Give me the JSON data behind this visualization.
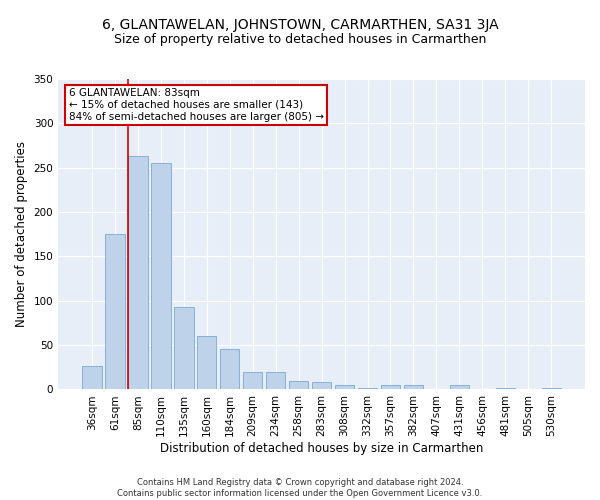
{
  "title": "6, GLANTAWELAN, JOHNSTOWN, CARMARTHEN, SA31 3JA",
  "subtitle": "Size of property relative to detached houses in Carmarthen",
  "xlabel": "Distribution of detached houses by size in Carmarthen",
  "ylabel": "Number of detached properties",
  "categories": [
    "36sqm",
    "61sqm",
    "85sqm",
    "110sqm",
    "135sqm",
    "160sqm",
    "184sqm",
    "209sqm",
    "234sqm",
    "258sqm",
    "283sqm",
    "308sqm",
    "332sqm",
    "357sqm",
    "382sqm",
    "407sqm",
    "431sqm",
    "456sqm",
    "481sqm",
    "505sqm",
    "530sqm"
  ],
  "values": [
    27,
    175,
    263,
    255,
    93,
    60,
    46,
    20,
    20,
    10,
    8,
    5,
    2,
    5,
    5,
    0,
    5,
    0,
    2,
    0,
    2
  ],
  "bar_color": "#bed3ea",
  "bar_edge_color": "#7aaad0",
  "red_line_index": 2,
  "ylim": [
    0,
    350
  ],
  "yticks": [
    0,
    50,
    100,
    150,
    200,
    250,
    300,
    350
  ],
  "annotation_text": "6 GLANTAWELAN: 83sqm\n← 15% of detached houses are smaller (143)\n84% of semi-detached houses are larger (805) →",
  "annotation_box_color": "#ffffff",
  "annotation_box_edge_color": "#cc0000",
  "background_color": "#e8eef8",
  "fig_background_color": "#ffffff",
  "grid_color": "#ffffff",
  "footer": "Contains HM Land Registry data © Crown copyright and database right 2024.\nContains public sector information licensed under the Open Government Licence v3.0.",
  "title_fontsize": 10,
  "subtitle_fontsize": 9,
  "xlabel_fontsize": 8.5,
  "ylabel_fontsize": 8.5,
  "tick_fontsize": 7.5,
  "footer_fontsize": 6
}
